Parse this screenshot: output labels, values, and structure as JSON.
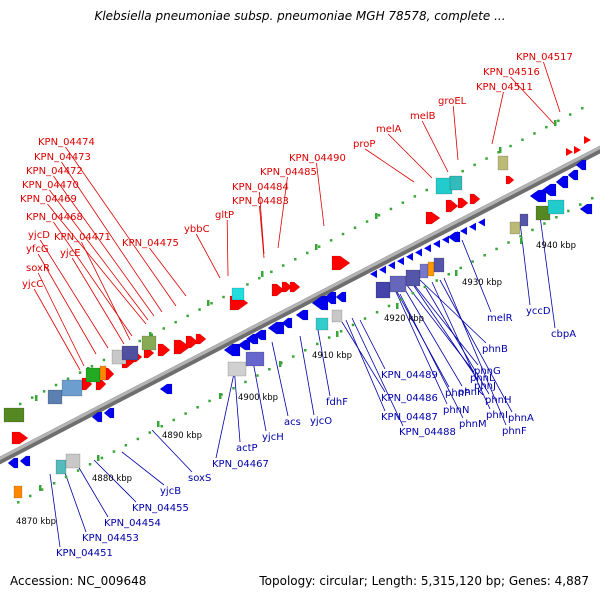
{
  "title": "Klebsiella pneumoniae subsp. pneumoniae MGH 78578, complete ...",
  "footer": {
    "accession": "Accession: NC_009648",
    "stats": "Topology: circular; Length: 5,315,120 bp; Genes: 4,887"
  },
  "colors": {
    "backbone": "#8c8c8c",
    "forward_label": "#dd0000",
    "reverse_label": "#0000aa",
    "tick": "#3aa63a",
    "forward_gene": "#ff0000",
    "reverse_gene": "#0000ee"
  },
  "scale": [
    "4870 kbp",
    "4880 kbp",
    "4890 kbp",
    "4900 kbp",
    "4910 kbp",
    "4920 kbp",
    "4930 kbp",
    "4940 kbp"
  ],
  "forward_labels": [
    "KPN_04517",
    "KPN_04516",
    "KPN_04511",
    "groEL",
    "melB",
    "melA",
    "proP",
    "KPN_04490",
    "KPN_04485",
    "KPN_04484",
    "KPN_04483",
    "gltP",
    "ybbC",
    "KPN_04475",
    "KPN_04474",
    "KPN_04473",
    "KPN_04472",
    "KPN_04470",
    "KPN_04469",
    "KPN_04468",
    "yjcD",
    "KPN_04471",
    "yfcG",
    "yjcE",
    "soxR",
    "yjcC"
  ],
  "reverse_labels": [
    "phnB",
    "phnG",
    "phnL",
    "phnJ",
    "phnK",
    "phnP",
    "phnH",
    "phnN",
    "phnI",
    "phnA",
    "phnM",
    "phnF",
    "KPN_04489",
    "KPN_04486",
    "KPN_04487",
    "KPN_04488",
    "melR",
    "yccD",
    "cbpA",
    "fdhF",
    "yjcO",
    "acs",
    "yjcH",
    "actP",
    "KPN_04467",
    "soxS",
    "yjcB",
    "KPN_04455",
    "KPN_04454",
    "KPN_04453",
    "KPN_04451"
  ]
}
